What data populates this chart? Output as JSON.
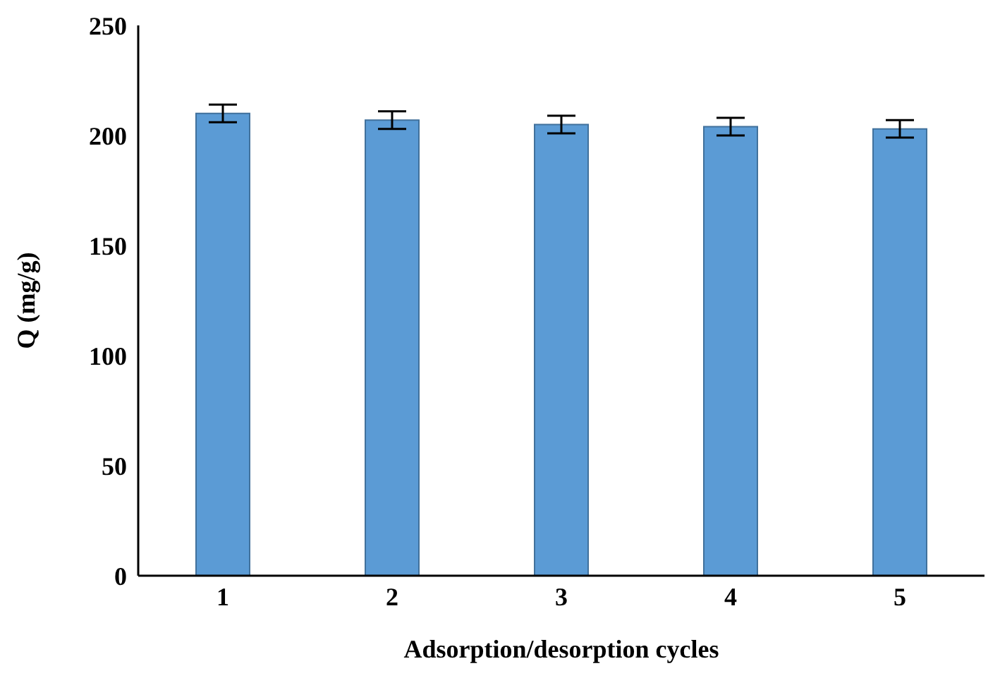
{
  "chart_data": {
    "type": "bar",
    "xlabel": "Adsorption/desorption cycles",
    "ylabel": "Q (mg/g)",
    "categories": [
      "1",
      "2",
      "3",
      "4",
      "5"
    ],
    "values": [
      210,
      207,
      205,
      204,
      203
    ],
    "errors": [
      4,
      4,
      4,
      4,
      4
    ],
    "color": "#5b9bd5",
    "ylim": [
      0,
      250
    ],
    "yticks": [
      0,
      50,
      100,
      150,
      200,
      250
    ]
  }
}
